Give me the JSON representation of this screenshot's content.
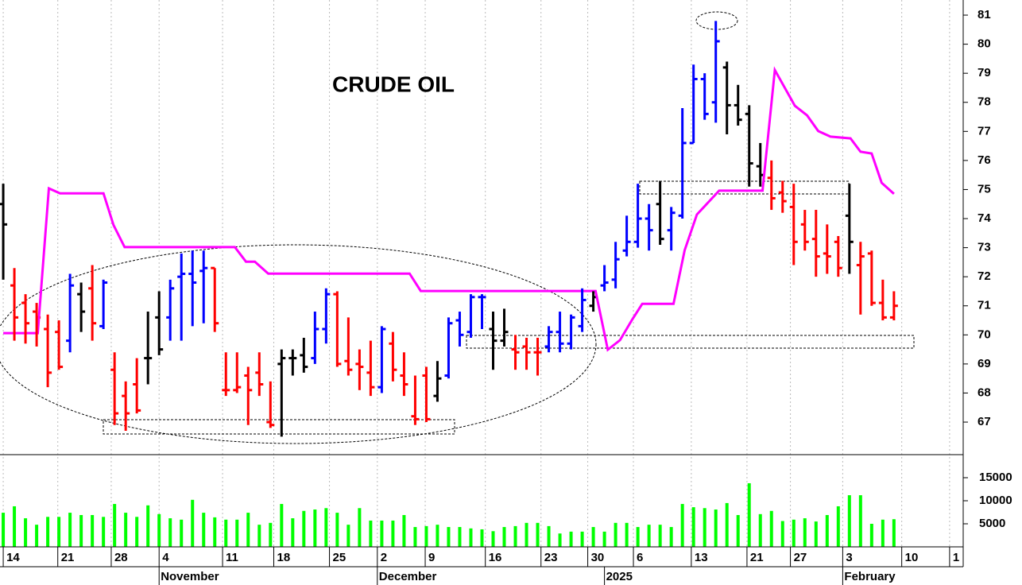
{
  "chart_data": [
    {
      "type": "ohlc",
      "title": "CRUDE OIL",
      "x": [
        0,
        1,
        2,
        3,
        4,
        5,
        6,
        7,
        8,
        9,
        10,
        11,
        12,
        13,
        14,
        15,
        16,
        17,
        18,
        19,
        20,
        21,
        22,
        23,
        24,
        25,
        26,
        27,
        28,
        29,
        30,
        31,
        32,
        33,
        34,
        35,
        36,
        37,
        38,
        39,
        40,
        41,
        42,
        43,
        44,
        45,
        46,
        47,
        48,
        49,
        50,
        51,
        52,
        53,
        54,
        55,
        56,
        57,
        58,
        59,
        60,
        61,
        62,
        63,
        64,
        65,
        66,
        67,
        68,
        69,
        70,
        71,
        72,
        73,
        74,
        75,
        76,
        77,
        78,
        79,
        80
      ],
      "open": [
        74.5,
        71.7,
        71.1,
        70.8,
        70.2,
        70.1,
        69.8,
        71.4,
        71.6,
        70.3,
        68.8,
        67.9,
        68.3,
        69.2,
        70.6,
        70.6,
        72.0,
        72.1,
        72.2,
        72.3,
        68.1,
        68.1,
        68.6,
        68.7,
        67.0,
        69.0,
        69.2,
        69.3,
        69.2,
        70.2,
        71.4,
        69.1,
        69.0,
        68.7,
        68.2,
        69.7,
        68.6,
        67.2,
        68.6,
        67.9,
        68.6,
        70.5,
        70.1,
        71.3,
        70.2,
        69.8,
        69.5,
        69.6,
        69.4,
        69.6,
        70.1,
        69.7,
        70.3,
        71.0,
        71.7,
        71.9,
        72.9,
        73.2,
        74.0,
        74.5,
        73.6,
        74.1,
        76.6,
        78.8,
        78.0,
        79.2,
        77.9,
        77.6,
        75.8,
        75.4,
        74.9,
        74.4,
        73.8,
        73.3,
        72.8,
        73.2,
        74.1,
        72.4,
        72.8,
        71.1,
        70.6
      ],
      "high": [
        75.2,
        72.3,
        71.4,
        71.1,
        70.7,
        70.5,
        72.1,
        71.8,
        72.4,
        71.9,
        69.4,
        68.4,
        69.2,
        70.8,
        71.5,
        71.9,
        72.8,
        72.9,
        72.9,
        72.3,
        69.4,
        69.4,
        68.9,
        69.4,
        68.4,
        69.5,
        69.5,
        69.9,
        70.8,
        71.6,
        71.5,
        70.6,
        69.5,
        69.8,
        70.3,
        70.1,
        69.4,
        68.6,
        68.9,
        69.1,
        70.6,
        70.8,
        71.4,
        71.4,
        70.8,
        70.9,
        70.0,
        69.9,
        69.9,
        70.3,
        70.8,
        70.7,
        71.6,
        71.5,
        72.4,
        73.2,
        74.1,
        75.2,
        74.5,
        75.3,
        74.4,
        77.8,
        79.3,
        79.0,
        80.8,
        79.4,
        78.6,
        77.9,
        76.6,
        76.0,
        75.3,
        75.2,
        74.3,
        74.3,
        73.8,
        73.4,
        75.2,
        73.2,
        72.9,
        71.9,
        71.5
      ],
      "low": [
        71.9,
        69.8,
        69.7,
        69.6,
        68.2,
        68.8,
        69.4,
        70.1,
        69.8,
        70.2,
        66.9,
        66.7,
        67.3,
        68.3,
        69.3,
        69.8,
        69.8,
        70.3,
        70.4,
        70.1,
        67.9,
        68.0,
        66.9,
        67.9,
        66.8,
        66.5,
        68.6,
        68.7,
        69.0,
        69.7,
        68.9,
        68.6,
        68.1,
        67.9,
        68.0,
        68.4,
        67.9,
        66.9,
        67.0,
        67.7,
        68.5,
        69.6,
        69.9,
        70.2,
        68.8,
        69.6,
        68.8,
        68.8,
        68.6,
        69.4,
        69.4,
        69.5,
        70.1,
        70.8,
        71.5,
        71.6,
        72.7,
        73.0,
        72.9,
        73.1,
        72.9,
        74.0,
        76.6,
        77.4,
        77.3,
        76.9,
        77.2,
        75.1,
        75.1,
        74.3,
        74.2,
        72.4,
        72.9,
        72.0,
        72.1,
        72.0,
        72.1,
        70.7,
        71.0,
        70.5,
        70.5
      ],
      "close": [
        73.8,
        70.6,
        70.4,
        70.6,
        68.7,
        68.9,
        71.7,
        70.8,
        70.4,
        71.8,
        67.3,
        67.3,
        67.4,
        69.2,
        69.5,
        71.6,
        72.1,
        71.8,
        72.3,
        70.4,
        68.1,
        68.2,
        68.1,
        68.3,
        66.9,
        69.2,
        69.2,
        68.9,
        70.2,
        71.4,
        69.0,
        68.8,
        68.9,
        68.2,
        70.2,
        68.8,
        68.3,
        67.1,
        67.1,
        68.5,
        70.4,
        70.0,
        71.3,
        71.3,
        69.8,
        70.1,
        69.4,
        69.4,
        69.4,
        70.1,
        69.7,
        70.6,
        71.2,
        71.3,
        71.8,
        72.6,
        73.2,
        74.0,
        73.6,
        73.3,
        74.2,
        76.6,
        78.8,
        77.6,
        80.1,
        77.9,
        77.4,
        75.9,
        75.5,
        74.7,
        74.6,
        73.2,
        73.2,
        72.7,
        72.7,
        72.3,
        73.2,
        72.7,
        71.1,
        70.6,
        71.0
      ],
      "bar_colors": [
        "black",
        "red",
        "red",
        "red",
        "red",
        "red",
        "blue",
        "black",
        "red",
        "blue",
        "red",
        "red",
        "red",
        "black",
        "black",
        "blue",
        "blue",
        "blue",
        "blue",
        "red",
        "red",
        "red",
        "red",
        "red",
        "red",
        "black",
        "black",
        "black",
        "blue",
        "blue",
        "red",
        "red",
        "red",
        "red",
        "blue",
        "red",
        "red",
        "red",
        "red",
        "black",
        "blue",
        "blue",
        "blue",
        "blue",
        "black",
        "black",
        "red",
        "red",
        "red",
        "blue",
        "blue",
        "blue",
        "blue",
        "black",
        "blue",
        "blue",
        "blue",
        "blue",
        "blue",
        "black",
        "blue",
        "blue",
        "blue",
        "blue",
        "blue",
        "black",
        "black",
        "black",
        "black",
        "red",
        "red",
        "red",
        "red",
        "red",
        "red",
        "red",
        "black",
        "red",
        "red",
        "red",
        "red"
      ],
      "line": {
        "color": "#ff00ff",
        "x": [
          0,
          3.1,
          4.1,
          5.1,
          9.0,
          9.9,
          10.9,
          20.8,
          21.8,
          22.6,
          23.8,
          36.5,
          37.5,
          53.2,
          54.3,
          55.4,
          56.5,
          57.4,
          60.2,
          61.2,
          62.3,
          64.3,
          68.2,
          69.3,
          71.1,
          72.2,
          73.2,
          74.3,
          76.1,
          77.0,
          78.0,
          78.9,
          80
        ],
        "values": [
          70.06,
          70.06,
          75.04,
          74.87,
          74.87,
          73.78,
          73.02,
          73.02,
          72.52,
          72.52,
          72.11,
          72.11,
          71.51,
          71.51,
          69.49,
          69.82,
          70.53,
          71.07,
          71.07,
          72.91,
          74.14,
          74.96,
          74.96,
          79.11,
          77.88,
          77.55,
          77.01,
          76.82,
          76.76,
          76.3,
          76.24,
          75.23,
          74.85
        ]
      },
      "xlim": [
        -0.29,
        86.22
      ],
      "ylim": [
        65.88,
        81.52
      ],
      "yticks": [
        67,
        68,
        69,
        70,
        71,
        72,
        73,
        74,
        75,
        76,
        77,
        78,
        79,
        80,
        81
      ],
      "grid": true
    },
    {
      "type": "bar",
      "color": "#00ff00",
      "values": [
        7400,
        8800,
        6200,
        4800,
        6500,
        6500,
        7400,
        6900,
        6900,
        6500,
        9300,
        7400,
        6500,
        9000,
        7100,
        6200,
        5900,
        10200,
        7400,
        6400,
        5900,
        5900,
        7400,
        4800,
        5200,
        9300,
        6200,
        7800,
        8100,
        8400,
        7400,
        4800,
        8400,
        5700,
        5700,
        5700,
        6900,
        4300,
        4500,
        4800,
        4300,
        4300,
        4000,
        3800,
        3400,
        4300,
        4500,
        5200,
        5200,
        4500,
        2900,
        3300,
        3300,
        4300,
        3300,
        5200,
        5200,
        4300,
        4800,
        4800,
        4300,
        9300,
        8600,
        8400,
        8100,
        9500,
        6900,
        13800,
        7100,
        7800,
        5600,
        5900,
        6200,
        5500,
        6900,
        8800,
        11200,
        11200,
        5000,
        5900,
        6000
      ],
      "xlim": [
        -0.29,
        86.22
      ],
      "ylim": [
        0,
        20000
      ],
      "yticks": [
        5000,
        10000,
        15000
      ],
      "xticks": [
        {
          "value": 0,
          "label": "14"
        },
        {
          "value": 4.9,
          "label": "21"
        },
        {
          "value": 9.7,
          "label": "28"
        },
        {
          "value": 14,
          "label": "4"
        },
        {
          "value": 19.7,
          "label": "11"
        },
        {
          "value": 24.3,
          "label": "18"
        },
        {
          "value": 29.3,
          "label": "25"
        },
        {
          "value": 33.6,
          "label": "2"
        },
        {
          "value": 37.9,
          "label": "9"
        },
        {
          "value": 43.3,
          "label": "16"
        },
        {
          "value": 48.3,
          "label": "23"
        },
        {
          "value": 52.5,
          "label": "30"
        },
        {
          "value": 56.6,
          "label": "6"
        },
        {
          "value": 61.8,
          "label": "13"
        },
        {
          "value": 66.8,
          "label": "21"
        },
        {
          "value": 70.7,
          "label": "27"
        },
        {
          "value": 75.4,
          "label": "3"
        },
        {
          "value": 80.7,
          "label": "10"
        },
        {
          "value": 85,
          "label": "1"
        }
      ],
      "month_labels": [
        {
          "value": 14,
          "label": "November"
        },
        {
          "value": 33.6,
          "label": "December"
        },
        {
          "value": 54,
          "label": "2025"
        },
        {
          "value": 75.4,
          "label": "February"
        }
      ]
    }
  ]
}
